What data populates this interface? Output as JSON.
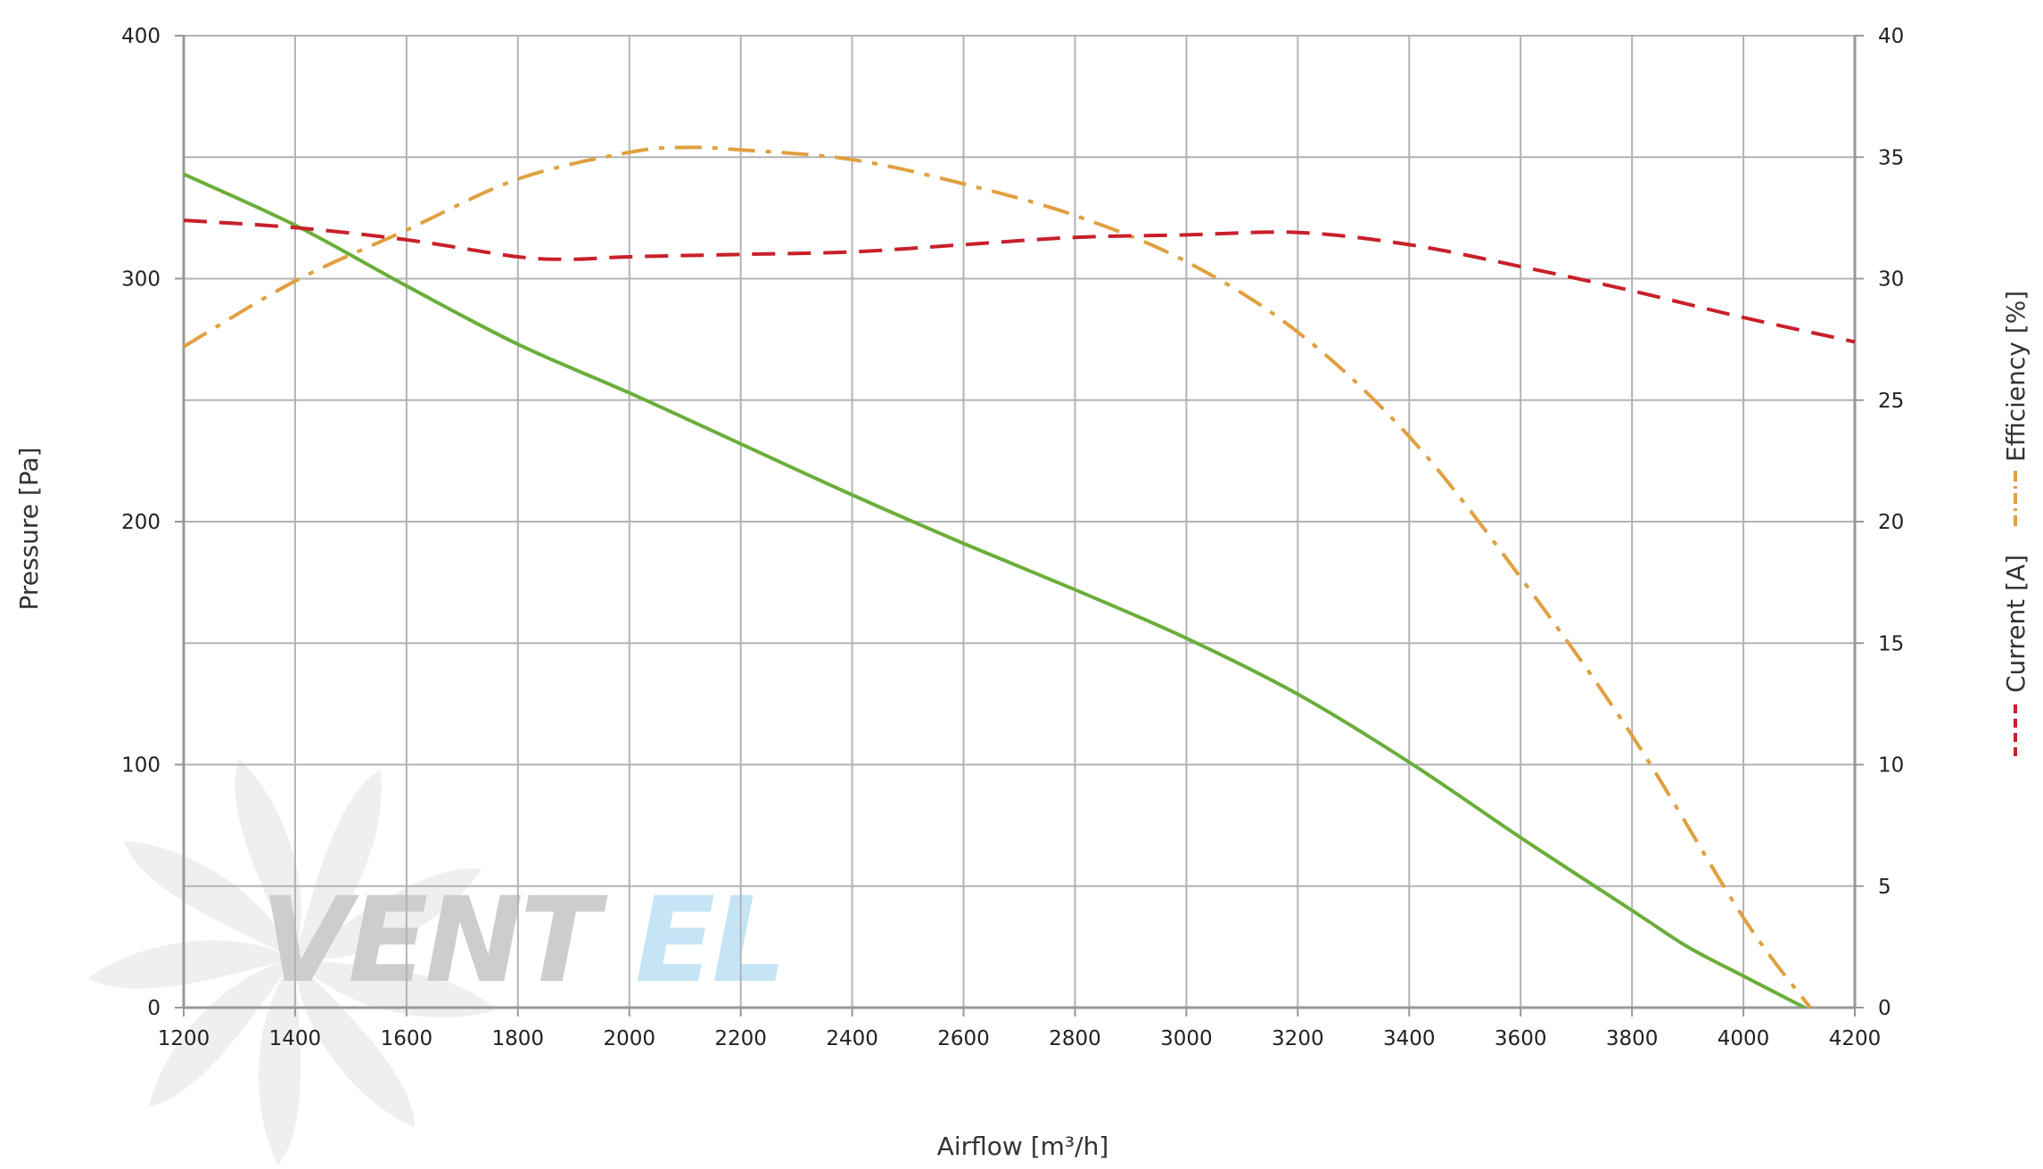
{
  "chart_data": {
    "type": "line",
    "xlabel": "Airflow [m³/h]",
    "ylabel": "Pressure [Pa]",
    "y2label_efficiency": "Efficiency [%]",
    "y2label_current": "Current [A]",
    "xlim": [
      1200,
      4200
    ],
    "ylim": [
      0,
      400
    ],
    "y2lim": [
      0,
      40
    ],
    "grid": true,
    "x_ticks": [
      "1200",
      "1400",
      "1600",
      "1800",
      "2000",
      "2200",
      "2400",
      "2600",
      "2800",
      "3000",
      "3200",
      "3400",
      "3600",
      "3800",
      "4000",
      "4200"
    ],
    "y_ticks": [
      "0",
      "100",
      "200",
      "300",
      "400"
    ],
    "y2_ticks": [
      "0",
      "5",
      "10",
      "15",
      "20",
      "25",
      "30",
      "35",
      "40"
    ],
    "series": [
      {
        "name": "Pressure",
        "axis": "left",
        "color": "#6aae3a",
        "style": "solid",
        "x": [
          1200,
          1400,
          1600,
          1800,
          2000,
          2200,
          2400,
          2600,
          2800,
          3000,
          3200,
          3400,
          3600,
          3800,
          3900,
          4000,
          4110
        ],
        "y": [
          343,
          322,
          297,
          273,
          253,
          232,
          211,
          191,
          172,
          152,
          129,
          101,
          70,
          40,
          25,
          13,
          0
        ]
      },
      {
        "name": "Efficiency [%]",
        "axis": "right",
        "color": "#e0a040",
        "style": "dashdot",
        "x": [
          1200,
          1400,
          1600,
          1800,
          2000,
          2100,
          2200,
          2400,
          2600,
          2800,
          3000,
          3200,
          3400,
          3600,
          3800,
          4000,
          4120
        ],
        "y": [
          27.2,
          29.9,
          32.0,
          34.1,
          35.2,
          35.4,
          35.3,
          34.9,
          33.9,
          32.6,
          30.7,
          27.8,
          23.5,
          17.7,
          11.2,
          3.7,
          0
        ]
      },
      {
        "name": "Current [A]",
        "axis": "right",
        "color": "#c8202a",
        "style": "dashed",
        "x": [
          1200,
          1400,
          1600,
          1800,
          1900,
          2000,
          2200,
          2400,
          2600,
          2800,
          3000,
          3200,
          3400,
          3600,
          3800,
          4000,
          4200
        ],
        "y": [
          32.4,
          32.1,
          31.6,
          30.9,
          30.8,
          30.9,
          31.0,
          31.1,
          31.4,
          31.7,
          31.8,
          31.9,
          31.4,
          30.5,
          29.5,
          28.4,
          27.4
        ]
      }
    ]
  },
  "watermark": {
    "text_part1": "VENT",
    "text_part2": "EL",
    "color_part1": "#c8c8c8",
    "color_part2": "#bfe1f5"
  },
  "colors": {
    "grid": "#b3b3b3",
    "axis": "#999999"
  }
}
